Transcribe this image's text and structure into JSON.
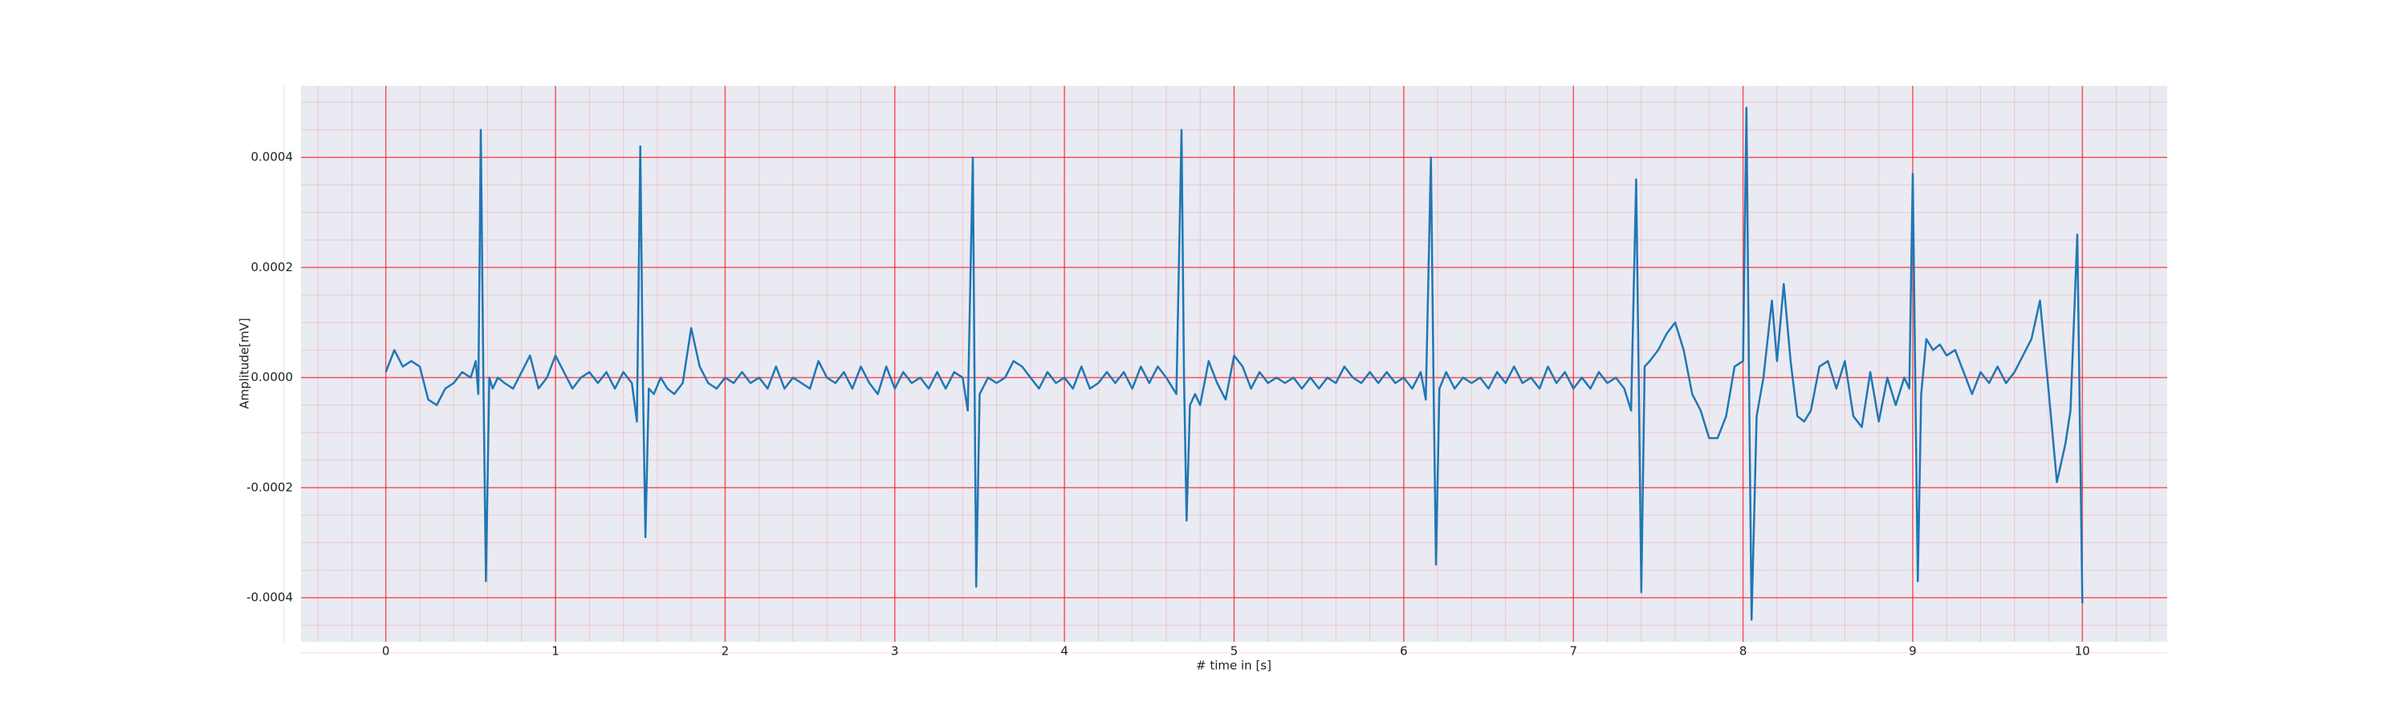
{
  "chart_data": {
    "type": "line",
    "xlabel": "# time in [s]",
    "ylabel": "Amplitude[mV]",
    "color": "#1f77b4",
    "grid": true,
    "grid_color": "#ff0000",
    "minor_grid": true,
    "background": "#eaeaf2",
    "xlim": [
      -0.5,
      10.5
    ],
    "ylim": [
      -0.00048,
      0.00053
    ],
    "xticks": [
      0,
      1,
      2,
      3,
      4,
      5,
      6,
      7,
      8,
      9,
      10
    ],
    "yticks": [
      {
        "value": -0.0004,
        "label": "-0.0004"
      },
      {
        "value": -0.0002,
        "label": "-0.0002"
      },
      {
        "value": 0,
        "label": "0.0000"
      },
      {
        "value": 0.0002,
        "label": "0.0002"
      },
      {
        "value": 0.0004,
        "label": "0.0004"
      }
    ],
    "x": [
      0,
      0.05,
      0.1,
      0.15,
      0.2,
      0.25,
      0.3,
      0.35,
      0.4,
      0.45,
      0.5,
      0.53,
      0.545,
      0.56,
      0.575,
      0.59,
      0.61,
      0.63,
      0.66,
      0.7,
      0.75,
      0.8,
      0.85,
      0.9,
      0.95,
      1.0,
      1.05,
      1.1,
      1.15,
      1.2,
      1.25,
      1.3,
      1.35,
      1.4,
      1.45,
      1.48,
      1.5,
      1.515,
      1.53,
      1.55,
      1.58,
      1.62,
      1.66,
      1.7,
      1.75,
      1.8,
      1.85,
      1.9,
      1.95,
      2.0,
      2.05,
      2.1,
      2.15,
      2.2,
      2.25,
      2.3,
      2.35,
      2.4,
      2.45,
      2.5,
      2.55,
      2.6,
      2.65,
      2.7,
      2.75,
      2.8,
      2.85,
      2.9,
      2.95,
      3.0,
      3.05,
      3.1,
      3.15,
      3.2,
      3.25,
      3.3,
      3.35,
      3.4,
      3.43,
      3.46,
      3.47,
      3.48,
      3.5,
      3.55,
      3.6,
      3.65,
      3.7,
      3.75,
      3.8,
      3.85,
      3.9,
      3.95,
      4.0,
      4.05,
      4.1,
      4.15,
      4.2,
      4.25,
      4.3,
      4.35,
      4.4,
      4.45,
      4.5,
      4.55,
      4.6,
      4.66,
      4.69,
      4.705,
      4.72,
      4.74,
      4.77,
      4.8,
      4.85,
      4.9,
      4.95,
      5.0,
      5.05,
      5.1,
      5.15,
      5.2,
      5.25,
      5.3,
      5.35,
      5.4,
      5.45,
      5.5,
      5.55,
      5.6,
      5.65,
      5.7,
      5.75,
      5.8,
      5.85,
      5.9,
      5.95,
      6.0,
      6.05,
      6.1,
      6.13,
      6.16,
      6.175,
      6.19,
      6.21,
      6.25,
      6.3,
      6.35,
      6.4,
      6.45,
      6.5,
      6.55,
      6.6,
      6.65,
      6.7,
      6.75,
      6.8,
      6.85,
      6.9,
      6.95,
      7.0,
      7.05,
      7.1,
      7.15,
      7.2,
      7.25,
      7.3,
      7.34,
      7.37,
      7.385,
      7.4,
      7.42,
      7.45,
      7.5,
      7.55,
      7.6,
      7.65,
      7.7,
      7.75,
      7.8,
      7.85,
      7.9,
      7.95,
      8.0,
      8.02,
      8.035,
      8.05,
      8.08,
      8.12,
      8.17,
      8.2,
      8.24,
      8.28,
      8.32,
      8.36,
      8.4,
      8.45,
      8.5,
      8.55,
      8.6,
      8.65,
      8.7,
      8.75,
      8.8,
      8.85,
      8.9,
      8.95,
      8.98,
      9.0,
      9.015,
      9.03,
      9.05,
      9.08,
      9.12,
      9.16,
      9.2,
      9.25,
      9.3,
      9.35,
      9.4,
      9.45,
      9.5,
      9.55,
      9.6,
      9.65,
      9.7,
      9.75,
      9.8,
      9.85,
      9.9,
      9.93,
      9.97,
      10.0
    ],
    "values": [
      1e-05,
      5e-05,
      2e-05,
      3e-05,
      2e-05,
      -4e-05,
      -5e-05,
      -2e-05,
      -1e-05,
      1e-05,
      0,
      3e-05,
      -3e-05,
      0.00045,
      0,
      -0.00037,
      0,
      -2e-05,
      0,
      -1e-05,
      -2e-05,
      1e-05,
      4e-05,
      -2e-05,
      0,
      4e-05,
      1e-05,
      -2e-05,
      0,
      1e-05,
      -1e-05,
      1e-05,
      -2e-05,
      1e-05,
      -1e-05,
      -8e-05,
      0.00042,
      0,
      -0.00029,
      -2e-05,
      -3e-05,
      0,
      -2e-05,
      -3e-05,
      -1e-05,
      9e-05,
      2e-05,
      -1e-05,
      -2e-05,
      0,
      -1e-05,
      1e-05,
      -1e-05,
      0,
      -2e-05,
      2e-05,
      -2e-05,
      0,
      -1e-05,
      -2e-05,
      3e-05,
      0,
      -1e-05,
      1e-05,
      -2e-05,
      2e-05,
      -1e-05,
      -3e-05,
      2e-05,
      -2e-05,
      1e-05,
      -1e-05,
      0,
      -2e-05,
      1e-05,
      -2e-05,
      1e-05,
      0,
      -6e-05,
      0.0004,
      0,
      -0.00038,
      -3e-05,
      0,
      -1e-05,
      0,
      3e-05,
      2e-05,
      0,
      -2e-05,
      1e-05,
      -1e-05,
      0,
      -2e-05,
      2e-05,
      -2e-05,
      -1e-05,
      1e-05,
      -1e-05,
      1e-05,
      -2e-05,
      2e-05,
      -1e-05,
      2e-05,
      0,
      -3e-05,
      0.00045,
      0,
      -0.00026,
      -5e-05,
      -3e-05,
      -5e-05,
      3e-05,
      -1e-05,
      -4e-05,
      4e-05,
      2e-05,
      -2e-05,
      1e-05,
      -1e-05,
      0,
      -1e-05,
      0,
      -2e-05,
      0,
      -2e-05,
      0,
      -1e-05,
      2e-05,
      0,
      -1e-05,
      1e-05,
      -1e-05,
      1e-05,
      -1e-05,
      0,
      -2e-05,
      1e-05,
      -4e-05,
      0.0004,
      0,
      -0.00034,
      -2e-05,
      1e-05,
      -2e-05,
      0,
      -1e-05,
      0,
      -2e-05,
      1e-05,
      -1e-05,
      2e-05,
      -1e-05,
      0,
      -2e-05,
      2e-05,
      -1e-05,
      1e-05,
      -2e-05,
      0,
      -2e-05,
      1e-05,
      -1e-05,
      0,
      -2e-05,
      -6e-05,
      0.00036,
      0,
      -0.00039,
      2e-05,
      3e-05,
      5e-05,
      8e-05,
      0.0001,
      5e-05,
      -3e-05,
      -6e-05,
      -0.00011,
      -0.00011,
      -7e-05,
      2e-05,
      3e-05,
      0.00049,
      0,
      -0.00044,
      -7e-05,
      0,
      0.00014,
      3e-05,
      0.00017,
      3e-05,
      -7e-05,
      -8e-05,
      -6e-05,
      2e-05,
      3e-05,
      -2e-05,
      3e-05,
      -7e-05,
      -9e-05,
      1e-05,
      -8e-05,
      0,
      -5e-05,
      0,
      -2e-05,
      0.00037,
      0,
      -0.00037,
      -3e-05,
      7e-05,
      5e-05,
      6e-05,
      4e-05,
      5e-05,
      1e-05,
      -3e-05,
      1e-05,
      -1e-05,
      2e-05,
      -1e-05,
      1e-05,
      4e-05,
      7e-05,
      0.00014,
      -2e-05,
      -0.00019,
      -0.00012,
      -6e-05,
      0.00026,
      -0.00041
    ]
  }
}
